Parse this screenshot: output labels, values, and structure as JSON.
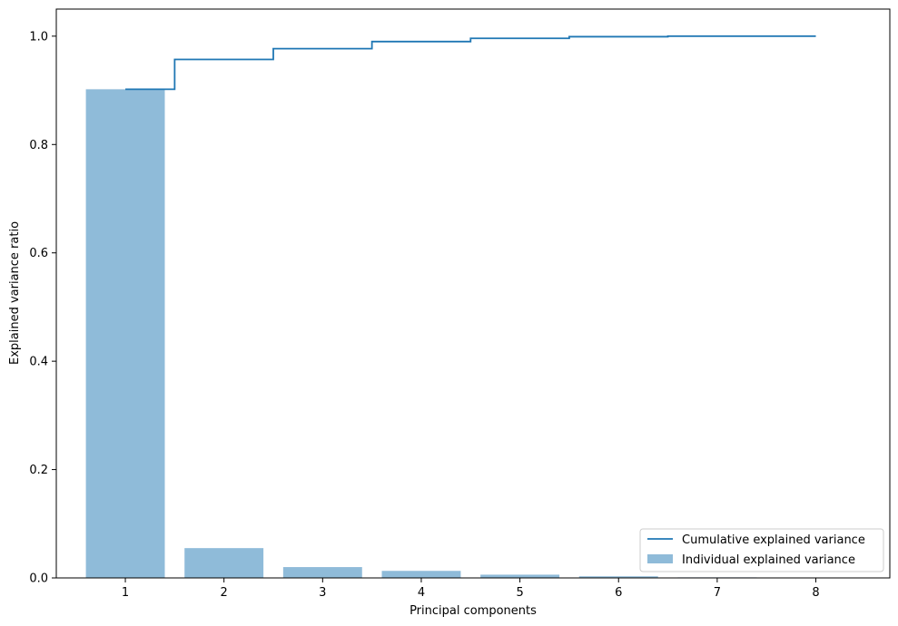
{
  "chart_data": {
    "type": "bar",
    "xlabel": "Principal components",
    "ylabel": "Explained variance ratio",
    "xlim": [
      0.3,
      8.75
    ],
    "ylim": [
      0,
      1.05
    ],
    "x_ticks": [
      1,
      2,
      3,
      4,
      5,
      6,
      7,
      8
    ],
    "x_tick_labels": [
      "1",
      "2",
      "3",
      "4",
      "5",
      "6",
      "7",
      "8"
    ],
    "y_ticks": [
      0.0,
      0.2,
      0.4,
      0.6,
      0.8,
      1.0
    ],
    "y_tick_labels": [
      "0.0",
      "0.2",
      "0.4",
      "0.6",
      "0.8",
      "1.0"
    ],
    "grid": false,
    "legend_position": "lower-right",
    "series": [
      {
        "name": "Individual explained variance",
        "kind": "bar",
        "color": "#1f77b4",
        "opacity": 0.5,
        "x": [
          1,
          2,
          3,
          4,
          5,
          6,
          7,
          8
        ],
        "values": [
          0.902,
          0.055,
          0.02,
          0.013,
          0.006,
          0.003,
          0.001,
          0.0005
        ]
      },
      {
        "name": "Cumulative explained variance",
        "kind": "step",
        "where": "mid",
        "color": "#1f77b4",
        "x": [
          1,
          2,
          3,
          4,
          5,
          6,
          7,
          8
        ],
        "values": [
          0.902,
          0.957,
          0.977,
          0.99,
          0.996,
          0.999,
          1.0,
          1.0
        ]
      }
    ]
  },
  "legend": {
    "entries": [
      {
        "label": "Cumulative explained variance",
        "kind": "line",
        "color": "#1f77b4"
      },
      {
        "label": "Individual explained variance",
        "kind": "patch",
        "color": "#1f77b4",
        "opacity": 0.5
      }
    ]
  }
}
